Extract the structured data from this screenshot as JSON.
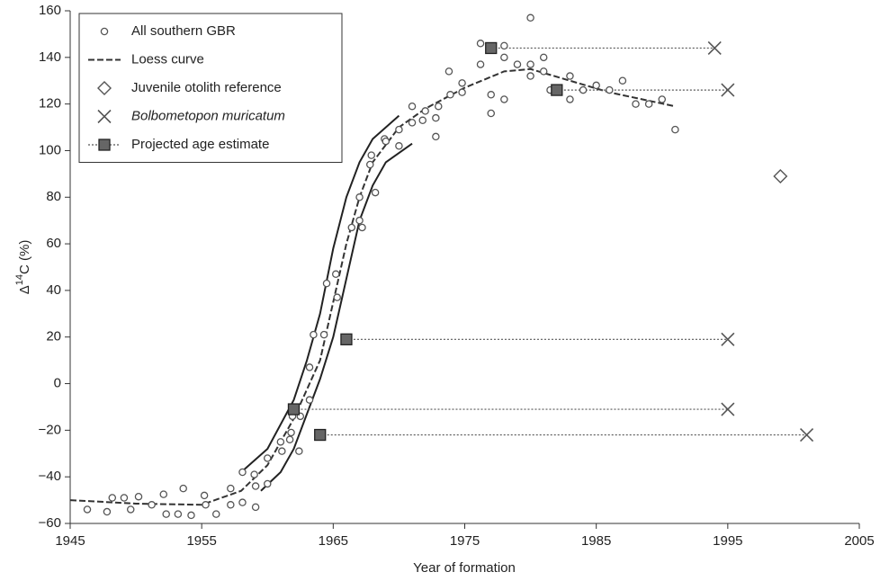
{
  "chart_data": {
    "type": "scatter",
    "xlabel": "Year of formation",
    "ylabel": [
      "Δ",
      "14",
      "C (%)"
    ],
    "xlim": [
      1945,
      2005
    ],
    "ylim": [
      -60,
      160
    ],
    "xticks": [
      1945,
      1955,
      1965,
      1975,
      1985,
      1995,
      2005
    ],
    "yticks": [
      {
        "value": -60,
        "label": "−60"
      },
      {
        "value": -40,
        "label": "−40"
      },
      {
        "value": -20,
        "label": "−20"
      },
      0,
      20,
      40,
      60,
      80,
      100,
      120,
      140,
      160
    ],
    "legend": "top-left",
    "series": [
      {
        "name": "All southern GBR",
        "kind": "points",
        "marker": "circle",
        "color": "#555555",
        "x": [
          1946.3,
          1947.8,
          1948.2,
          1949.1,
          1949.6,
          1950.2,
          1951.2,
          1952.1,
          1952.3,
          1953.2,
          1953.6,
          1954.2,
          1955.2,
          1955.3,
          1956.1,
          1957.2,
          1957.2,
          1958.1,
          1958.1,
          1959.0,
          1959.1,
          1959.1,
          1960.0,
          1960.0,
          1961.0,
          1961.1,
          1961.7,
          1961.8,
          1961.9,
          1962.4,
          1962.5,
          1963.2,
          1963.2,
          1963.5,
          1964.3,
          1964.5,
          1965.2,
          1965.3,
          1966.4,
          1967.0,
          1967.0,
          1967.2,
          1967.8,
          1967.9,
          1968.2,
          1968.9,
          1969.0,
          1970.0,
          1970.0,
          1971.0,
          1971.0,
          1971.8,
          1972.0,
          1972.8,
          1972.8,
          1973.0,
          1973.8,
          1973.9,
          1974.8,
          1974.8,
          1976.2,
          1976.2,
          1977.0,
          1977.0,
          1978.0,
          1978.0,
          1978.0,
          1979.0,
          1980.0,
          1980.0,
          1980.0,
          1981.0,
          1981.0,
          1981.5,
          1983.0,
          1983.0,
          1984.0,
          1985.0,
          1986.0,
          1987.0,
          1988.0,
          1989.0,
          1990.0,
          1991.0
        ],
        "values": [
          -54,
          -55,
          -49,
          -49,
          -54,
          -48.5,
          -52,
          -47.5,
          -56,
          -56,
          -45,
          -56.5,
          -48,
          -52,
          -56,
          -45,
          -52,
          -38,
          -51,
          -39,
          -44,
          -53,
          -32,
          -43,
          -25,
          -29,
          -24,
          -21,
          -14,
          -29,
          -14,
          -7,
          7,
          21,
          21,
          43,
          47,
          37,
          67,
          80,
          70,
          67,
          94,
          98,
          82,
          105,
          104,
          102,
          109,
          112,
          119,
          113,
          117,
          106,
          114,
          119,
          134,
          124,
          129,
          125,
          146,
          137,
          124,
          116,
          145,
          140,
          122,
          137,
          157,
          137,
          132,
          140,
          134,
          126,
          132,
          122,
          126,
          128,
          126,
          130,
          120,
          120,
          122,
          109
        ]
      },
      {
        "name": "Loess curve",
        "kind": "line",
        "dash": "7,3",
        "color": "#333333",
        "x": [
          1945,
          1950,
          1955,
          1958,
          1960,
          1962,
          1964,
          1965,
          1966,
          1967,
          1968,
          1970,
          1972,
          1975,
          1978,
          1980,
          1983,
          1986,
          1991
        ],
        "values": [
          -50,
          -51.5,
          -52,
          -46,
          -35,
          -15,
          10,
          35,
          60,
          80,
          95,
          110,
          118,
          127,
          134,
          135,
          130,
          125,
          119
        ]
      },
      {
        "kind": "line",
        "color": "#222222",
        "x": [
          1958,
          1960,
          1962,
          1963,
          1964,
          1965,
          1966,
          1967,
          1968,
          1970
        ],
        "values": [
          -38,
          -28,
          -7,
          10,
          30,
          58,
          80,
          95,
          105,
          115
        ]
      },
      {
        "kind": "line",
        "color": "#222222",
        "x": [
          1959.5,
          1961,
          1962,
          1963,
          1964,
          1965,
          1966,
          1967,
          1968,
          1969,
          1971
        ],
        "values": [
          -46,
          -38,
          -28,
          -13,
          2,
          20,
          45,
          70,
          85,
          95,
          103
        ]
      },
      {
        "name": "Juvenile otolith reference",
        "kind": "points",
        "marker": "diamond",
        "color": "#555555",
        "x": [
          1999
        ],
        "values": [
          89
        ]
      },
      {
        "name": "Bolbometopon muricatum",
        "italic": true,
        "kind": "points",
        "marker": "x",
        "color": "#555555",
        "x": [
          1994,
          1995,
          1995,
          1995,
          2001
        ],
        "values": [
          144,
          126,
          19,
          -11,
          -22
        ]
      },
      {
        "name": "Projected age estimate",
        "kind": "points",
        "marker": "square",
        "color": "#666666",
        "link": 5,
        "x": [
          1977,
          1982,
          1966,
          1962,
          1964
        ],
        "values": [
          144,
          126,
          19,
          -11,
          -22
        ]
      }
    ]
  }
}
